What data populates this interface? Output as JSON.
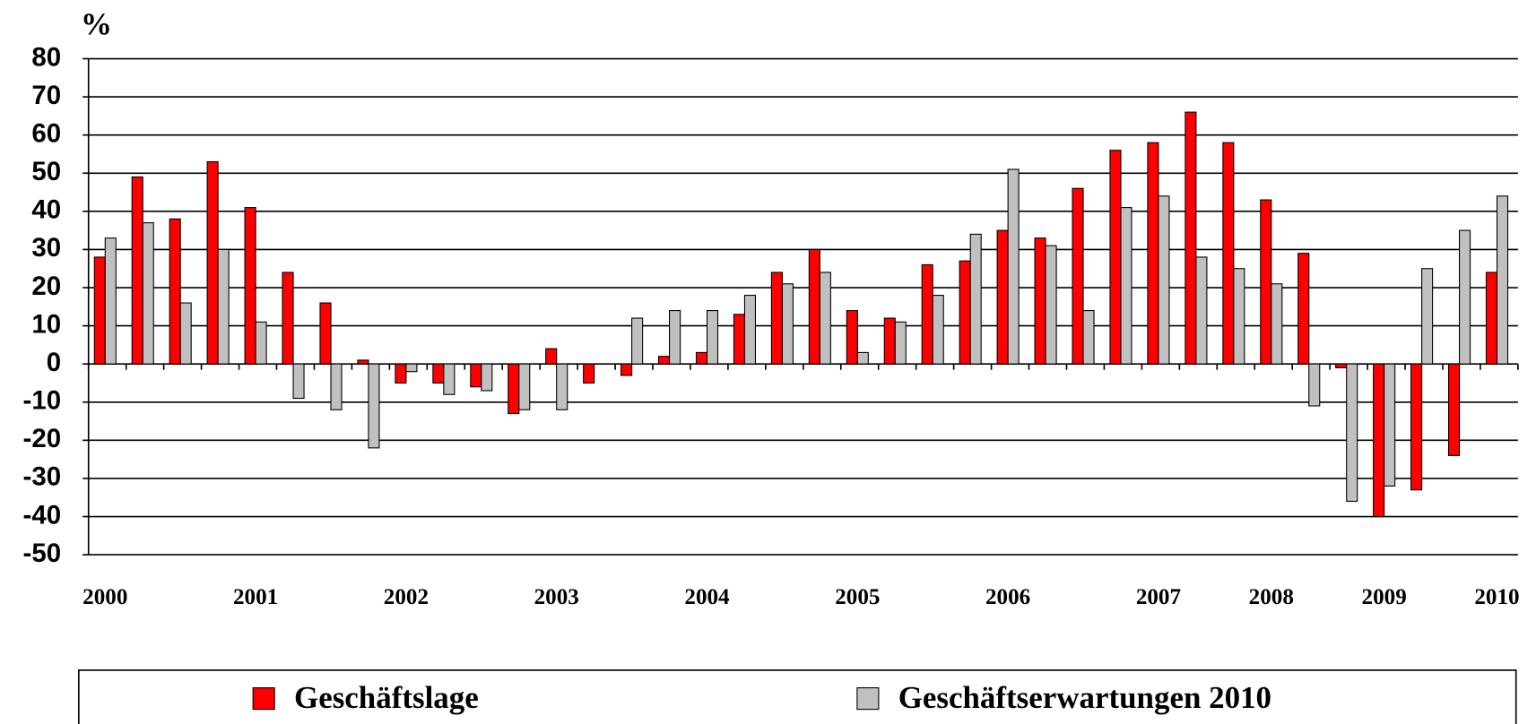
{
  "chart_data": {
    "type": "bar",
    "y_label": "%",
    "categories": [
      "2000",
      null,
      null,
      null,
      "2001",
      null,
      null,
      null,
      "2002",
      null,
      null,
      null,
      "2003",
      null,
      null,
      null,
      "2004",
      null,
      null,
      null,
      "2005",
      null,
      null,
      null,
      "2006",
      null,
      null,
      null,
      "2007",
      null,
      null,
      "2008",
      null,
      null,
      "2009",
      null,
      null,
      "2010"
    ],
    "series": [
      {
        "name": "Geschäftslage",
        "color": "#ff0000",
        "values": [
          28,
          49,
          38,
          53,
          41,
          24,
          16,
          1,
          -5,
          -5,
          -6,
          -13,
          4,
          -5,
          -3,
          2,
          3,
          13,
          24,
          30,
          14,
          12,
          26,
          27,
          35,
          33,
          46,
          56,
          58,
          66,
          58,
          43,
          29,
          -1,
          -40,
          -33,
          -24,
          24
        ]
      },
      {
        "name": "Geschäftserwartungen 2010",
        "color": "#c0c0c0",
        "values": [
          33,
          37,
          16,
          30,
          11,
          -9,
          -12,
          -22,
          -2,
          -8,
          -7,
          -12,
          -12,
          0,
          12,
          14,
          14,
          18,
          21,
          24,
          3,
          11,
          18,
          34,
          51,
          31,
          14,
          41,
          44,
          28,
          25,
          21,
          -11,
          -36,
          -32,
          25,
          35,
          44
        ]
      }
    ],
    "ylim": [
      -50,
      80
    ],
    "yticks": [
      -50,
      -40,
      -30,
      -20,
      -10,
      0,
      10,
      20,
      30,
      40,
      50,
      60,
      70,
      80
    ],
    "grid": true,
    "legend": "bottom"
  }
}
